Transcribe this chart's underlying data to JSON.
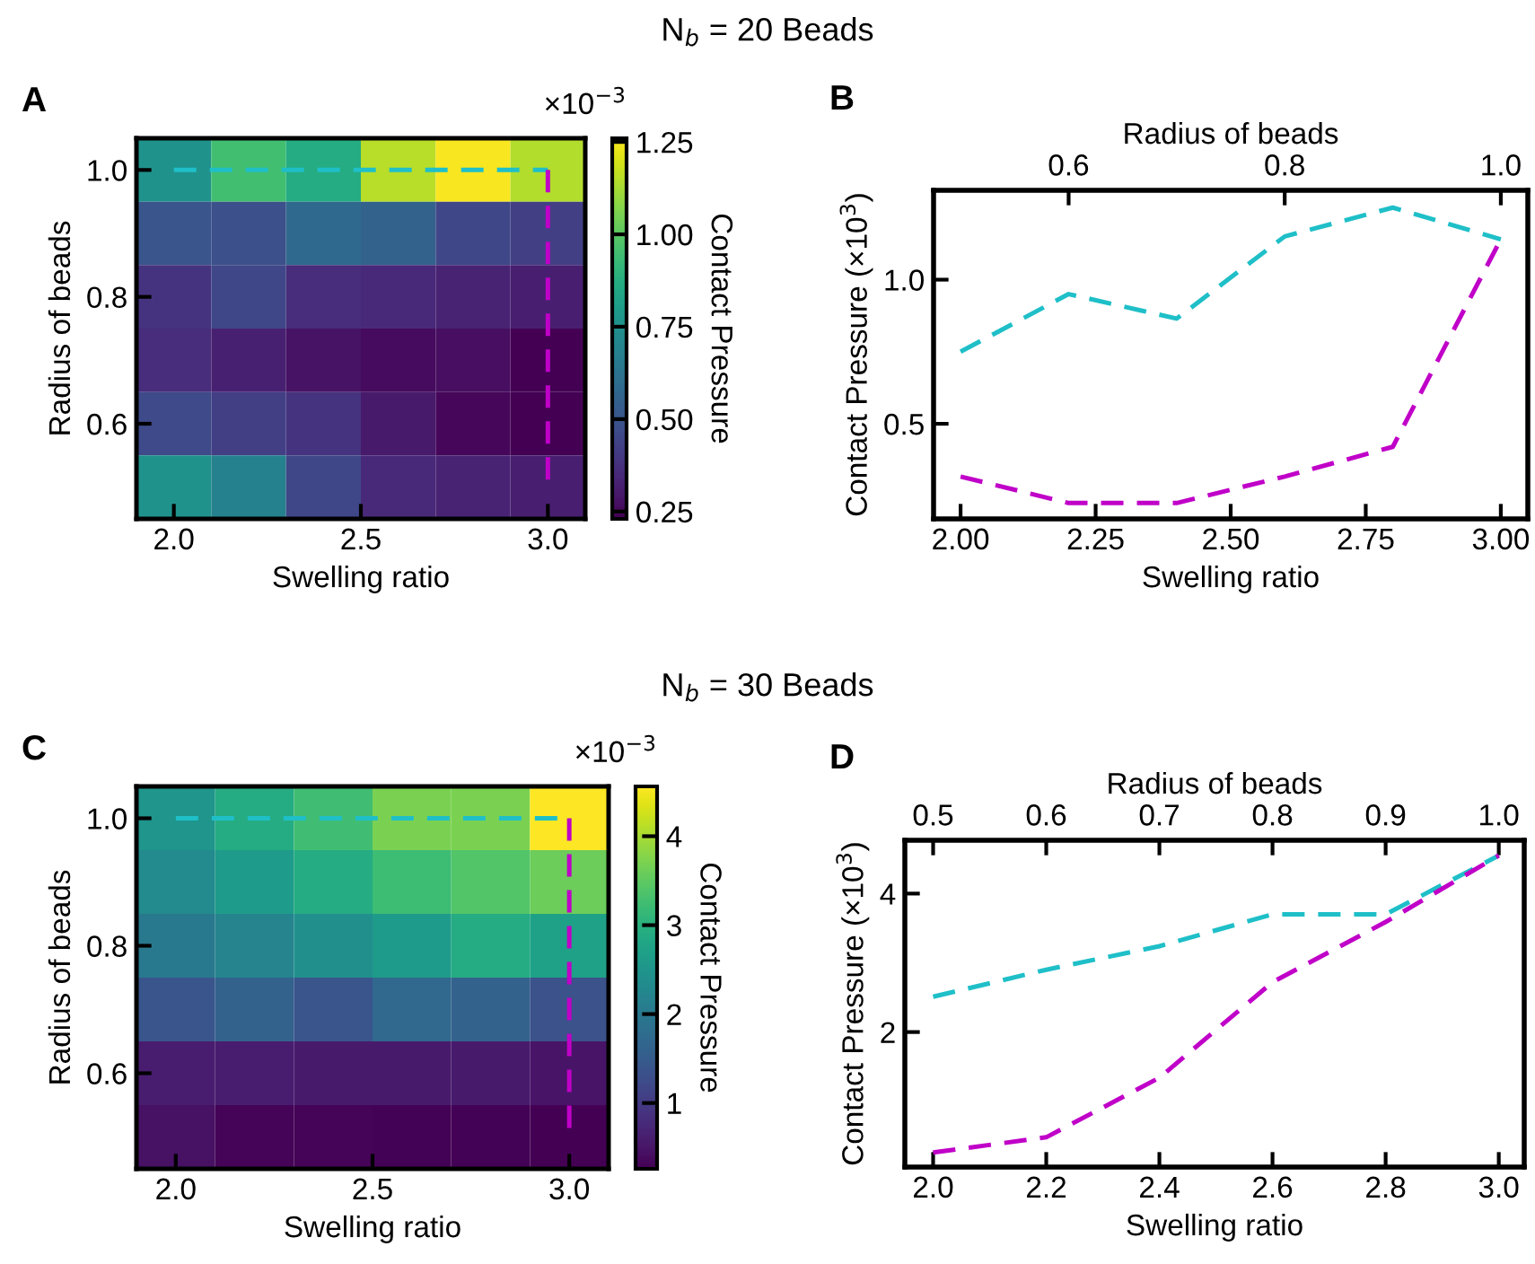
{
  "chart_data": [
    {
      "type": "heatmap",
      "xlabel": "Swelling ratio",
      "ylabel": "Radius of beads",
      "clabel": "Contact Pressure",
      "annotations": [
        "A",
        "×10$^{−3}$"
      ],
      "x": [
        2.0,
        2.2,
        2.4,
        2.6,
        2.8,
        3.0
      ],
      "y_categories": [
        "1.0",
        null,
        "0.8",
        null,
        "0.6",
        null
      ],
      "cells": [
        [
          0.75,
          0.95,
          0.865,
          1.15,
          1.25,
          1.14
        ],
        [
          0.5,
          0.48,
          0.58,
          0.55,
          0.45,
          0.42
        ],
        [
          0.38,
          0.45,
          0.36,
          0.35,
          0.33,
          0.317
        ],
        [
          0.36,
          0.32,
          0.28,
          0.26,
          0.27,
          0.225
        ],
        [
          0.46,
          0.42,
          0.38,
          0.3,
          0.25,
          0.225
        ],
        [
          0.75,
          0.68,
          0.45,
          0.35,
          0.33,
          0.317
        ]
      ],
      "xlim": [
        1.9,
        3.1
      ],
      "xticks": [
        {
          "value": 2,
          "label": "2.0"
        },
        2.5,
        {
          "value": 3,
          "label": "3.0"
        }
      ],
      "clim": [
        0.23,
        1.26
      ],
      "cticks": [
        0.25,
        {
          "value": 0.5,
          "label": "0.50"
        },
        0.75,
        {
          "value": 1,
          "label": "1.00"
        },
        1.25
      ],
      "ref_lines": [
        {
          "axis": "y",
          "value": "1.0",
          "color": "#1fbfc8",
          "line_style": "dashed"
        },
        {
          "axis": "x",
          "value": 3.0,
          "color": "#c000c8",
          "line_style": "dashed"
        }
      ]
    },
    {
      "type": "line",
      "title": "N$_{b}$ = 20 Beads",
      "xlabel": "Swelling ratio",
      "ylabel": "Contact Pressure (×10$^{3}$)",
      "x2label": "Radius of beads",
      "annotations": [
        "B"
      ],
      "line_style": "dashed",
      "marker": "none",
      "series": [
        {
          "color": "#1fbfc8",
          "x": [
            2.0,
            2.2,
            2.4,
            2.6,
            2.8,
            3.0
          ],
          "values": [
            0.75,
            0.95,
            0.865,
            1.15,
            1.25,
            1.14
          ]
        },
        {
          "color": "#c000c8",
          "axis": "x2",
          "x": [
            0.5,
            0.6,
            0.7,
            0.8,
            0.9,
            1.0
          ],
          "values": [
            0.317,
            0.225,
            0.225,
            0.317,
            0.42,
            1.14
          ]
        }
      ],
      "xlim": [
        1.95,
        3.05
      ],
      "xticks": [
        {
          "value": 2,
          "label": "2.00"
        },
        2.25,
        {
          "value": 2.5,
          "label": "2.50"
        },
        2.75,
        {
          "value": 3,
          "label": "3.00"
        }
      ],
      "x2lim": [
        0.475,
        1.025
      ],
      "x2ticks": [
        0.6,
        0.8,
        {
          "value": 1,
          "label": "1.0"
        }
      ],
      "ylim": [
        0.17,
        1.31
      ],
      "yticks": [
        0.5,
        {
          "value": 1,
          "label": "1.0"
        }
      ]
    },
    {
      "type": "heatmap",
      "xlabel": "Swelling ratio",
      "ylabel": "Radius of beads",
      "clabel": "Contact Pressure",
      "annotations": [
        "C",
        "×10$^{−3}$"
      ],
      "x": [
        2.0,
        2.2,
        2.4,
        2.6,
        2.8,
        3.0
      ],
      "y_categories": [
        "1.0",
        null,
        "0.8",
        null,
        "0.6",
        null
      ],
      "cells": [
        [
          2.51,
          2.9,
          3.24,
          3.7,
          3.7,
          4.55
        ],
        [
          2.3,
          2.6,
          2.9,
          3.2,
          3.4,
          3.59
        ],
        [
          2.0,
          2.2,
          2.4,
          2.6,
          2.9,
          2.72
        ],
        [
          1.4,
          1.6,
          1.4,
          1.7,
          1.6,
          1.34
        ],
        [
          0.6,
          0.6,
          0.55,
          0.55,
          0.55,
          0.48
        ],
        [
          0.45,
          0.3,
          0.3,
          0.28,
          0.28,
          0.26
        ]
      ],
      "xlim": [
        1.9,
        3.1
      ],
      "xticks": [
        {
          "value": 2,
          "label": "2.0"
        },
        2.5,
        {
          "value": 3,
          "label": "3.0"
        }
      ],
      "clim": [
        0.26,
        4.56
      ],
      "cticks": [
        1,
        2,
        3,
        4
      ],
      "ref_lines": [
        {
          "axis": "y",
          "value": "1.0",
          "color": "#1fbfc8",
          "line_style": "dashed"
        },
        {
          "axis": "x",
          "value": 3.0,
          "color": "#c000c8",
          "line_style": "dashed"
        }
      ]
    },
    {
      "type": "line",
      "title": "N$_{b}$ = 30 Beads",
      "xlabel": "Swelling ratio",
      "ylabel": "Contact Pressure (×10$^{3}$)",
      "x2label": "Radius of beads",
      "annotations": [
        "D"
      ],
      "line_style": "dashed",
      "marker": "none",
      "series": [
        {
          "color": "#1fbfc8",
          "x": [
            2.0,
            2.2,
            2.4,
            2.6,
            2.8,
            3.0
          ],
          "values": [
            2.51,
            2.9,
            3.24,
            3.7,
            3.7,
            4.55
          ]
        },
        {
          "color": "#c000c8",
          "axis": "x2",
          "x": [
            0.5,
            0.6,
            0.7,
            0.8,
            0.9,
            1.0
          ],
          "values": [
            0.26,
            0.48,
            1.34,
            2.72,
            3.59,
            4.55
          ]
        }
      ],
      "xlim": [
        1.95,
        3.045
      ],
      "xticks": [
        {
          "value": 2,
          "label": "2.0"
        },
        2.2,
        2.4,
        2.6,
        2.8,
        {
          "value": 3,
          "label": "3.0"
        }
      ],
      "x2lim": [
        0.475,
        1.0225
      ],
      "x2ticks": [
        0.5,
        0.6,
        0.7,
        0.8,
        0.9,
        {
          "value": 1,
          "label": "1.0"
        }
      ],
      "ylim": [
        0.05,
        4.77
      ],
      "yticks": [
        2,
        4
      ]
    }
  ]
}
